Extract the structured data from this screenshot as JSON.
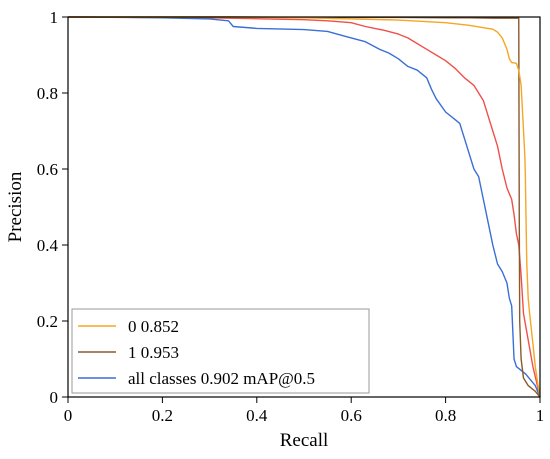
{
  "chart_data": {
    "type": "line",
    "title": "",
    "xlabel": "Recall",
    "ylabel": "Precision",
    "xlim": [
      0,
      1
    ],
    "ylim": [
      0,
      1
    ],
    "grid": false,
    "legend_placement": "bottom-left",
    "x_ticks": [
      0,
      0.2,
      0.4,
      0.6,
      0.8,
      1
    ],
    "x_tick_labels": [
      "0",
      "0.2",
      "0.4",
      "0.6",
      "0.8",
      "1"
    ],
    "y_ticks": [
      0,
      0.2,
      0.4,
      0.6,
      0.8,
      1
    ],
    "y_tick_labels": [
      "0",
      "0.2",
      "0.4",
      "0.6",
      "0.8",
      "1"
    ],
    "series": [
      {
        "name": "0 0.852",
        "color": "#f5a623",
        "points": [
          [
            0.0,
            1.0
          ],
          [
            0.3,
            1.0
          ],
          [
            0.5,
            0.998
          ],
          [
            0.6,
            0.995
          ],
          [
            0.7,
            0.992
          ],
          [
            0.8,
            0.985
          ],
          [
            0.85,
            0.978
          ],
          [
            0.88,
            0.972
          ],
          [
            0.9,
            0.968
          ],
          [
            0.91,
            0.96
          ],
          [
            0.92,
            0.945
          ],
          [
            0.93,
            0.915
          ],
          [
            0.935,
            0.89
          ],
          [
            0.94,
            0.88
          ],
          [
            0.95,
            0.878
          ],
          [
            0.955,
            0.86
          ],
          [
            0.96,
            0.82
          ],
          [
            0.963,
            0.75
          ],
          [
            0.966,
            0.68
          ],
          [
            0.968,
            0.63
          ],
          [
            0.969,
            0.58
          ],
          [
            0.97,
            0.5
          ],
          [
            0.972,
            0.35
          ],
          [
            0.975,
            0.26
          ],
          [
            0.978,
            0.22
          ],
          [
            0.985,
            0.14
          ],
          [
            0.99,
            0.08
          ],
          [
            0.996,
            0.03
          ],
          [
            1.0,
            0.0
          ]
        ]
      },
      {
        "name": "1 0.953",
        "color": "#8b5a2b",
        "points": [
          [
            0.0,
            1.0
          ],
          [
            0.35,
            1.0
          ],
          [
            0.5,
            0.999
          ],
          [
            0.6,
            0.999
          ],
          [
            0.7,
            0.999
          ],
          [
            0.8,
            0.998
          ],
          [
            0.85,
            0.998
          ],
          [
            0.9,
            0.997
          ],
          [
            0.93,
            0.997
          ],
          [
            0.95,
            0.997
          ],
          [
            0.955,
            0.997
          ],
          [
            0.956,
            0.5
          ],
          [
            0.957,
            0.2
          ],
          [
            0.96,
            0.1
          ],
          [
            0.965,
            0.05
          ],
          [
            0.975,
            0.03
          ],
          [
            0.99,
            0.015
          ],
          [
            1.0,
            0.0
          ]
        ]
      },
      {
        "name": "all classes 0.902 mAP@0.5",
        "color": "#3a6fd6",
        "points": [
          [
            0.0,
            1.0
          ],
          [
            0.2,
            0.998
          ],
          [
            0.3,
            0.995
          ],
          [
            0.34,
            0.99
          ],
          [
            0.35,
            0.975
          ],
          [
            0.4,
            0.97
          ],
          [
            0.5,
            0.967
          ],
          [
            0.55,
            0.962
          ],
          [
            0.57,
            0.955
          ],
          [
            0.6,
            0.945
          ],
          [
            0.63,
            0.935
          ],
          [
            0.66,
            0.915
          ],
          [
            0.68,
            0.905
          ],
          [
            0.7,
            0.89
          ],
          [
            0.72,
            0.87
          ],
          [
            0.74,
            0.86
          ],
          [
            0.76,
            0.84
          ],
          [
            0.77,
            0.81
          ],
          [
            0.78,
            0.785
          ],
          [
            0.8,
            0.75
          ],
          [
            0.82,
            0.73
          ],
          [
            0.83,
            0.72
          ],
          [
            0.84,
            0.68
          ],
          [
            0.85,
            0.64
          ],
          [
            0.86,
            0.6
          ],
          [
            0.87,
            0.58
          ],
          [
            0.88,
            0.52
          ],
          [
            0.89,
            0.46
          ],
          [
            0.9,
            0.4
          ],
          [
            0.91,
            0.35
          ],
          [
            0.92,
            0.33
          ],
          [
            0.93,
            0.3
          ],
          [
            0.935,
            0.26
          ],
          [
            0.94,
            0.24
          ],
          [
            0.945,
            0.1
          ],
          [
            0.95,
            0.08
          ],
          [
            0.97,
            0.06
          ],
          [
            0.99,
            0.03
          ],
          [
            1.0,
            0.0
          ]
        ]
      },
      {
        "name": "",
        "color": "#f0504a",
        "points": [
          [
            0.0,
            1.0
          ],
          [
            0.3,
            0.998
          ],
          [
            0.5,
            0.993
          ],
          [
            0.55,
            0.99
          ],
          [
            0.6,
            0.985
          ],
          [
            0.63,
            0.975
          ],
          [
            0.65,
            0.97
          ],
          [
            0.67,
            0.965
          ],
          [
            0.7,
            0.955
          ],
          [
            0.72,
            0.945
          ],
          [
            0.74,
            0.93
          ],
          [
            0.76,
            0.915
          ],
          [
            0.78,
            0.9
          ],
          [
            0.8,
            0.885
          ],
          [
            0.82,
            0.865
          ],
          [
            0.84,
            0.84
          ],
          [
            0.86,
            0.82
          ],
          [
            0.87,
            0.8
          ],
          [
            0.88,
            0.78
          ],
          [
            0.89,
            0.74
          ],
          [
            0.9,
            0.7
          ],
          [
            0.91,
            0.66
          ],
          [
            0.92,
            0.6
          ],
          [
            0.93,
            0.55
          ],
          [
            0.94,
            0.52
          ],
          [
            0.945,
            0.48
          ],
          [
            0.95,
            0.43
          ],
          [
            0.955,
            0.4
          ],
          [
            0.96,
            0.32
          ],
          [
            0.965,
            0.22
          ],
          [
            0.975,
            0.15
          ],
          [
            0.985,
            0.08
          ],
          [
            1.0,
            0.0
          ]
        ]
      }
    ]
  }
}
